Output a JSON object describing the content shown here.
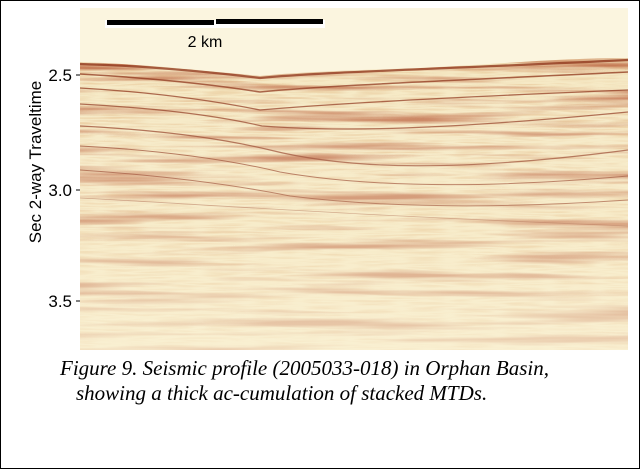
{
  "figure": {
    "scale_bar_label": "2 km",
    "y_axis_label": "Sec 2-way Traveltime",
    "y_ticks": [
      "2.5",
      "3.0",
      "3.5"
    ],
    "caption": [
      "Figure 9. Seismic profile (2005033-018) in Orphan Basin,",
      "showing a thick ac-cumulation of stacked MTDs."
    ]
  }
}
